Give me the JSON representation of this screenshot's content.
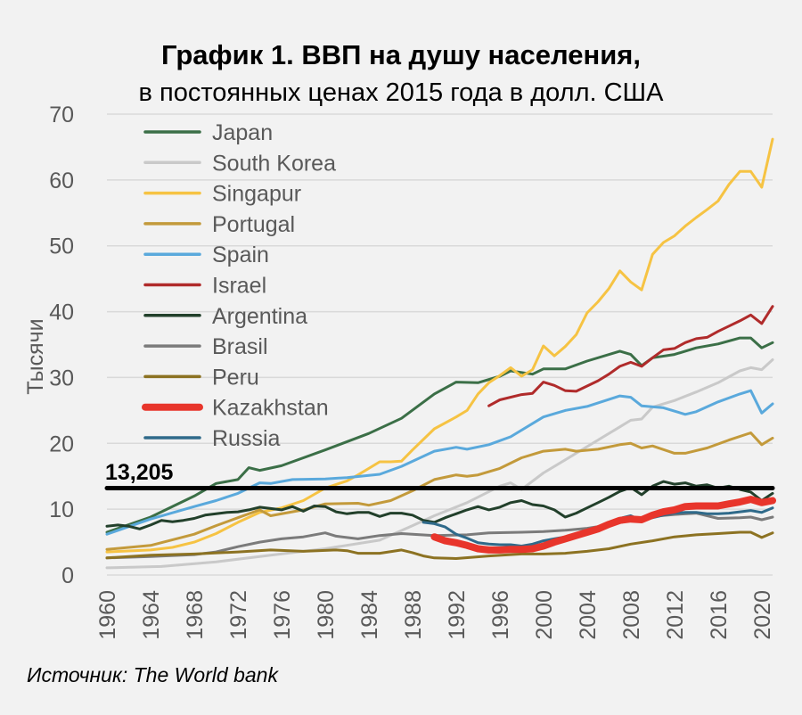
{
  "chart_data": {
    "type": "line",
    "title": "График 1. ВВП на душу населения,",
    "subtitle": "в постоянных ценах 2015 года в долл. США",
    "ylabel": "Тысячи",
    "xlabel": "",
    "ylim": [
      0,
      70
    ],
    "yticks": [
      "0",
      "10",
      "20",
      "30",
      "40",
      "50",
      "60",
      "70"
    ],
    "xlim": [
      1960,
      2021
    ],
    "xticks": [
      "1960",
      "1964",
      "1968",
      "1972",
      "1976",
      "1980",
      "1984",
      "1988",
      "1992",
      "1996",
      "2000",
      "2004",
      "2008",
      "2012",
      "2016",
      "2020"
    ],
    "grid": true,
    "legend": "top-left",
    "source": "Источник: The World bank",
    "reference_line": {
      "value": 13.205,
      "label": "13,205",
      "color": "#000000"
    },
    "series": [
      {
        "name": "Japan",
        "color": "#3b6f47",
        "x": [
          1960,
          1964,
          1968,
          1970,
          1972,
          1973,
          1974,
          1976,
          1980,
          1984,
          1987,
          1990,
          1992,
          1994,
          1996,
          1997,
          1999,
          2000,
          2002,
          2004,
          2007,
          2008,
          2009,
          2010,
          2012,
          2014,
          2016,
          2018,
          2019,
          2020,
          2021
        ],
        "y": [
          6.5,
          8.8,
          12,
          13.9,
          14.5,
          16.3,
          15.9,
          16.6,
          19,
          21.5,
          23.8,
          27.5,
          29.3,
          29.2,
          30.2,
          31,
          30.5,
          31.3,
          31.3,
          32.5,
          34,
          33.5,
          31.8,
          33,
          33.5,
          34.5,
          35.1,
          36,
          36,
          34.5,
          35.3
        ]
      },
      {
        "name": "South Korea",
        "color": "#c9c9c9",
        "x": [
          1960,
          1965,
          1970,
          1975,
          1980,
          1985,
          1988,
          1990,
          1993,
          1996,
          1997,
          1998,
          2000,
          2002,
          2004,
          2007,
          2008,
          2009,
          2010,
          2012,
          2014,
          2016,
          2018,
          2019,
          2020,
          2021
        ],
        "y": [
          1.1,
          1.3,
          2.0,
          3.0,
          4.0,
          5.3,
          7.5,
          9.0,
          11,
          13.5,
          14,
          13,
          15.5,
          17.5,
          19.5,
          22.5,
          23.5,
          23.7,
          25.5,
          26.5,
          27.8,
          29.2,
          31,
          31.5,
          31.2,
          32.7
        ]
      },
      {
        "name": "Singapur",
        "color": "#f6c343",
        "x": [
          1960,
          1964,
          1966,
          1968,
          1970,
          1972,
          1974,
          1976,
          1978,
          1980,
          1982,
          1983,
          1984,
          1985,
          1986,
          1987,
          1988,
          1990,
          1992,
          1993,
          1994,
          1995,
          1996,
          1997,
          1998,
          1999,
          2000,
          2001,
          2002,
          2003,
          2004,
          2005,
          2006,
          2007,
          2008,
          2009,
          2010,
          2011,
          2012,
          2013,
          2014,
          2015,
          2016,
          2017,
          2018,
          2019,
          2020,
          2021
        ],
        "y": [
          3.5,
          3.8,
          4.2,
          5.0,
          6.3,
          8,
          9.5,
          10.2,
          11.3,
          13.2,
          14.3,
          15.2,
          16.2,
          17.2,
          17.2,
          17.3,
          19,
          22.2,
          24,
          25,
          27.5,
          29.2,
          30.3,
          31.5,
          30.2,
          31.2,
          34.8,
          33.3,
          34.7,
          36.5,
          39.8,
          41.5,
          43.5,
          46.2,
          44.5,
          43.3,
          48.7,
          50.5,
          51.5,
          53,
          54.3,
          55.5,
          56.8,
          59.3,
          61.3,
          61.3,
          58.9,
          66.2
        ]
      },
      {
        "name": "Portugal",
        "color": "#c39a3b",
        "x": [
          1960,
          1964,
          1968,
          1970,
          1972,
          1974,
          1975,
          1978,
          1980,
          1983,
          1984,
          1986,
          1988,
          1990,
          1992,
          1993,
          1994,
          1996,
          1998,
          2000,
          2002,
          2003,
          2005,
          2007,
          2008,
          2009,
          2010,
          2012,
          2013,
          2015,
          2017,
          2019,
          2020,
          2021
        ],
        "y": [
          3.9,
          4.5,
          6.2,
          7.5,
          8.7,
          9.9,
          9.0,
          9.9,
          10.8,
          10.9,
          10.6,
          11.3,
          12.8,
          14.5,
          15.2,
          15.0,
          15.2,
          16.2,
          17.8,
          18.8,
          19.1,
          18.8,
          19.1,
          19.8,
          20.0,
          19.3,
          19.6,
          18.5,
          18.5,
          19.3,
          20.5,
          21.6,
          19.8,
          20.8
        ]
      },
      {
        "name": "Spain",
        "color": "#5aa9dc",
        "x": [
          1960,
          1964,
          1968,
          1970,
          1972,
          1974,
          1975,
          1977,
          1980,
          1982,
          1985,
          1987,
          1990,
          1992,
          1993,
          1995,
          1997,
          2000,
          2002,
          2004,
          2007,
          2008,
          2009,
          2011,
          2013,
          2014,
          2016,
          2018,
          2019,
          2020,
          2021
        ],
        "y": [
          6.2,
          8.5,
          10.4,
          11.3,
          12.4,
          14.0,
          13.9,
          14.5,
          14.6,
          14.8,
          15.3,
          16.5,
          18.8,
          19.4,
          19.1,
          19.8,
          21,
          24,
          25,
          25.6,
          27.2,
          27.0,
          25.7,
          25.4,
          24.4,
          24.8,
          26.3,
          27.5,
          28.0,
          24.6,
          26.0
        ]
      },
      {
        "name": "Israel",
        "color": "#b02b2b",
        "x": [
          1995,
          1996,
          1998,
          1999,
          2000,
          2001,
          2002,
          2003,
          2005,
          2006,
          2007,
          2008,
          2009,
          2010,
          2011,
          2012,
          2013,
          2014,
          2015,
          2016,
          2017,
          2018,
          2019,
          2020,
          2021
        ],
        "y": [
          25.7,
          26.6,
          27.4,
          27.6,
          29.3,
          28.8,
          28.0,
          27.9,
          29.5,
          30.5,
          31.7,
          32.3,
          31.7,
          33,
          34.2,
          34.4,
          35.3,
          35.9,
          36.1,
          37.0,
          37.8,
          38.6,
          39.5,
          38.2,
          40.8
        ]
      },
      {
        "name": "Argentina",
        "color": "#22402b",
        "x": [
          1960,
          1961,
          1962,
          1963,
          1964,
          1965,
          1966,
          1967,
          1968,
          1969,
          1970,
          1971,
          1972,
          1973,
          1974,
          1975,
          1976,
          1977,
          1978,
          1979,
          1980,
          1981,
          1982,
          1983,
          1984,
          1985,
          1986,
          1987,
          1988,
          1989,
          1990,
          1991,
          1992,
          1993,
          1994,
          1995,
          1996,
          1997,
          1998,
          1999,
          2000,
          2001,
          2002,
          2003,
          2004,
          2005,
          2006,
          2007,
          2008,
          2009,
          2010,
          2011,
          2012,
          2013,
          2014,
          2015,
          2016,
          2017,
          2018,
          2019,
          2020,
          2021
        ],
        "y": [
          7.4,
          7.6,
          7.4,
          7.0,
          7.6,
          8.3,
          8.1,
          8.3,
          8.6,
          9.1,
          9.3,
          9.5,
          9.6,
          9.9,
          10.3,
          10.1,
          9.9,
          10.4,
          9.7,
          10.5,
          10.4,
          9.6,
          9.3,
          9.5,
          9.5,
          8.9,
          9.4,
          9.4,
          9.1,
          8.3,
          8.0,
          8.7,
          9.3,
          9.9,
          10.4,
          9.9,
          10.3,
          11.0,
          11.3,
          10.7,
          10.5,
          9.9,
          8.8,
          9.4,
          10.2,
          11.0,
          11.8,
          12.7,
          13.3,
          12.2,
          13.5,
          14.2,
          13.8,
          14.0,
          13.5,
          13.7,
          13.2,
          13.5,
          13.0,
          12.6,
          11.3,
          12.4
        ]
      },
      {
        "name": "Brasil",
        "color": "#7b7b7b",
        "x": [
          1960,
          1964,
          1968,
          1970,
          1972,
          1974,
          1976,
          1978,
          1980,
          1981,
          1983,
          1985,
          1987,
          1990,
          1993,
          1995,
          1998,
          2000,
          2002,
          2004,
          2006,
          2008,
          2010,
          2012,
          2014,
          2015,
          2016,
          2018,
          2019,
          2020,
          2021
        ],
        "y": [
          2.6,
          2.8,
          3.1,
          3.5,
          4.3,
          5.0,
          5.5,
          5.8,
          6.4,
          5.9,
          5.5,
          6.0,
          6.3,
          6.0,
          6.1,
          6.4,
          6.5,
          6.6,
          6.8,
          7.1,
          7.6,
          8.3,
          8.9,
          9.2,
          9.4,
          9.0,
          8.6,
          8.7,
          8.8,
          8.4,
          8.8
        ]
      },
      {
        "name": "Peru",
        "color": "#8c7222",
        "x": [
          1960,
          1964,
          1968,
          1972,
          1975,
          1978,
          1981,
          1982,
          1983,
          1985,
          1987,
          1988,
          1989,
          1990,
          1992,
          1995,
          1998,
          2000,
          2002,
          2004,
          2006,
          2008,
          2010,
          2012,
          2014,
          2016,
          2018,
          2019,
          2020,
          2021
        ],
        "y": [
          2.6,
          3.0,
          3.2,
          3.5,
          3.8,
          3.6,
          3.8,
          3.7,
          3.3,
          3.3,
          3.8,
          3.4,
          2.9,
          2.6,
          2.5,
          2.9,
          3.2,
          3.2,
          3.3,
          3.6,
          4.0,
          4.7,
          5.2,
          5.8,
          6.1,
          6.3,
          6.5,
          6.5,
          5.7,
          6.4
        ]
      },
      {
        "name": "Kazakhstan",
        "color": "#e8352b",
        "thick": true,
        "x": [
          1990,
          1991,
          1992,
          1993,
          1994,
          1995,
          1996,
          1997,
          1998,
          1999,
          2000,
          2001,
          2002,
          2003,
          2004,
          2005,
          2006,
          2007,
          2008,
          2009,
          2010,
          2011,
          2012,
          2013,
          2014,
          2015,
          2016,
          2017,
          2018,
          2019,
          2020,
          2021
        ],
        "y": [
          5.8,
          5.2,
          4.9,
          4.5,
          4.0,
          3.8,
          3.8,
          3.9,
          3.9,
          4.0,
          4.4,
          5.0,
          5.5,
          6.0,
          6.5,
          7.0,
          7.7,
          8.3,
          8.5,
          8.4,
          9.1,
          9.6,
          9.9,
          10.4,
          10.5,
          10.5,
          10.5,
          10.8,
          11.1,
          11.5,
          11.0,
          11.3
        ]
      },
      {
        "name": "Russia",
        "color": "#2f6a8a",
        "x": [
          1989,
          1990,
          1991,
          1992,
          1993,
          1994,
          1995,
          1996,
          1997,
          1998,
          1999,
          2000,
          2001,
          2002,
          2003,
          2004,
          2005,
          2006,
          2007,
          2008,
          2009,
          2010,
          2011,
          2012,
          2013,
          2014,
          2015,
          2016,
          2017,
          2018,
          2019,
          2020,
          2021
        ],
        "y": [
          8.0,
          7.8,
          7.3,
          6.2,
          5.6,
          4.9,
          4.7,
          4.6,
          4.6,
          4.4,
          4.7,
          5.2,
          5.5,
          5.8,
          6.3,
          6.8,
          7.3,
          8.0,
          8.6,
          9.0,
          8.3,
          8.7,
          9.1,
          9.4,
          9.5,
          9.5,
          9.3,
          9.3,
          9.4,
          9.6,
          9.8,
          9.5,
          10.2
        ]
      }
    ]
  }
}
